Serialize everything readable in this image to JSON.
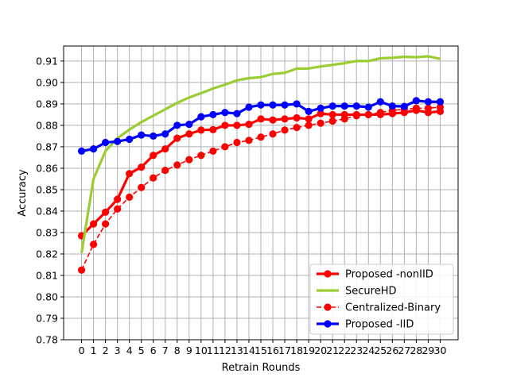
{
  "chart_data": {
    "type": "line",
    "xlabel": "Retrain Rounds",
    "ylabel": "Accuracy",
    "x": [
      0,
      1,
      2,
      3,
      4,
      5,
      6,
      7,
      8,
      9,
      10,
      11,
      12,
      13,
      14,
      15,
      16,
      17,
      18,
      19,
      20,
      21,
      22,
      23,
      24,
      25,
      26,
      27,
      28,
      29,
      30
    ],
    "xlim": [
      -1.5,
      31.5
    ],
    "ylim": [
      0.78,
      0.917
    ],
    "yticks": [
      0.78,
      0.79,
      0.8,
      0.81,
      0.82,
      0.83,
      0.84,
      0.85,
      0.86,
      0.87,
      0.88,
      0.89,
      0.9,
      0.91
    ],
    "grid": true,
    "legend_position": "lower-right",
    "series": [
      {
        "name": "Proposed -nonIID",
        "color": "#ff0000",
        "style": "solid",
        "marker": "circle",
        "values": [
          0.8285,
          0.834,
          0.8395,
          0.8455,
          0.8575,
          0.8605,
          0.866,
          0.869,
          0.874,
          0.876,
          0.8778,
          0.878,
          0.88,
          0.88,
          0.8805,
          0.883,
          0.8825,
          0.883,
          0.8835,
          0.883,
          0.8855,
          0.885,
          0.885,
          0.885,
          0.885,
          0.885,
          0.8855,
          0.886,
          0.887,
          0.886,
          0.8865
        ]
      },
      {
        "name": "SecureHD",
        "color": "#9acd32",
        "style": "solid",
        "marker": "none",
        "values": [
          0.8205,
          0.855,
          0.868,
          0.874,
          0.878,
          0.8815,
          0.8845,
          0.8875,
          0.8905,
          0.893,
          0.895,
          0.8972,
          0.899,
          0.901,
          0.902,
          0.9025,
          0.904,
          0.9045,
          0.9065,
          0.9065,
          0.9075,
          0.9082,
          0.909,
          0.91,
          0.91,
          0.9113,
          0.9115,
          0.912,
          0.9118,
          0.9122,
          0.911
        ]
      },
      {
        "name": "Centralized-Binary",
        "color": "#ff0000",
        "style": "dashed",
        "marker": "circle",
        "values": [
          0.8125,
          0.8245,
          0.834,
          0.841,
          0.8465,
          0.851,
          0.8555,
          0.859,
          0.8615,
          0.864,
          0.866,
          0.868,
          0.87,
          0.872,
          0.873,
          0.8745,
          0.876,
          0.8778,
          0.879,
          0.88,
          0.881,
          0.882,
          0.883,
          0.8845,
          0.885,
          0.886,
          0.887,
          0.8875,
          0.888,
          0.888,
          0.8885
        ]
      },
      {
        "name": "Proposed -IID",
        "color": "#0000ff",
        "style": "solid",
        "marker": "circle",
        "values": [
          0.868,
          0.869,
          0.872,
          0.8725,
          0.8735,
          0.8755,
          0.875,
          0.876,
          0.88,
          0.8805,
          0.884,
          0.885,
          0.886,
          0.8855,
          0.8885,
          0.8895,
          0.8895,
          0.8895,
          0.89,
          0.8865,
          0.888,
          0.889,
          0.889,
          0.889,
          0.8885,
          0.891,
          0.889,
          0.8888,
          0.8915,
          0.891,
          0.891
        ]
      }
    ]
  }
}
